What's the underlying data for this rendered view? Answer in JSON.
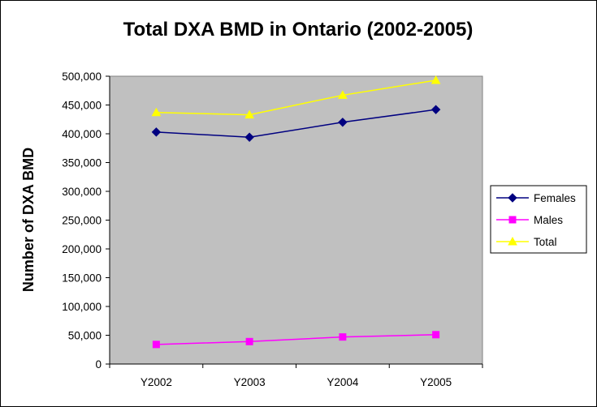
{
  "chart_data": {
    "type": "line",
    "title": "Total DXA BMD in Ontario (2002-2005)",
    "xlabel": "",
    "ylabel": "Number of DXA BMD",
    "categories": [
      "Y2002",
      "Y2003",
      "Y2004",
      "Y2005"
    ],
    "ylim": [
      0,
      500000
    ],
    "ytick_step": 50000,
    "yticks": [
      "0",
      "50,000",
      "100,000",
      "150,000",
      "200,000",
      "250,000",
      "300,000",
      "350,000",
      "400,000",
      "450,000",
      "500,000"
    ],
    "grid": false,
    "plot_background": "#c0c0c0",
    "legend_position": "right",
    "series": [
      {
        "name": "Females",
        "values": [
          403000,
          394000,
          420000,
          442000
        ],
        "color": "#000080",
        "marker": "diamond"
      },
      {
        "name": "Males",
        "values": [
          34000,
          39000,
          47000,
          51000
        ],
        "color": "#ff00ff",
        "marker": "square"
      },
      {
        "name": "Total",
        "values": [
          437000,
          433000,
          467000,
          493000
        ],
        "color": "#ffff00",
        "marker": "triangle"
      }
    ]
  }
}
